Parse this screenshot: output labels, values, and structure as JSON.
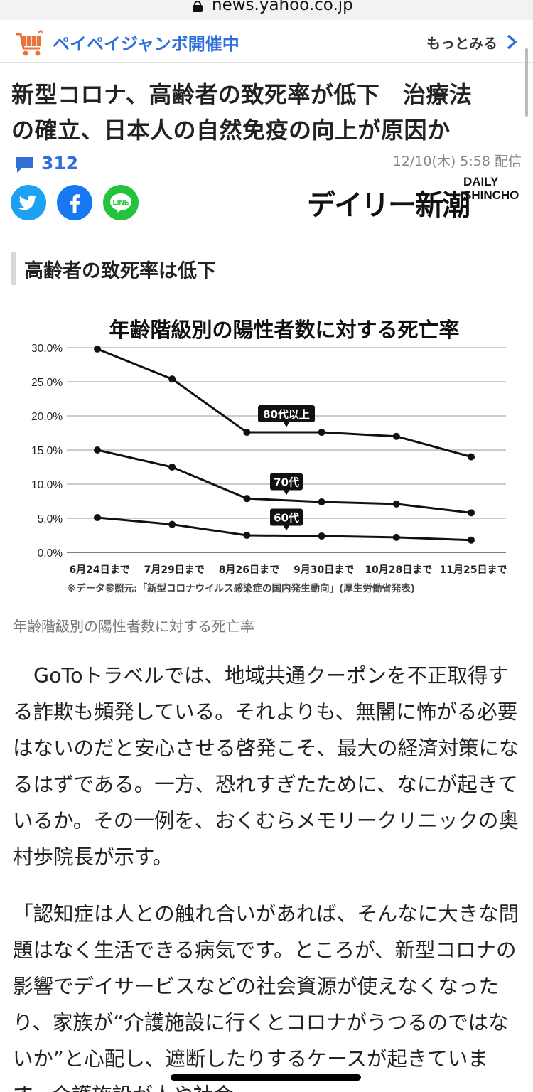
{
  "browser": {
    "url": "news.yahoo.co.jp"
  },
  "promo": {
    "label": "ペイペイジャンボ開催中",
    "more_label": "もっとみる"
  },
  "article": {
    "headline_line1": "新型コロナ、高齢者の致死率が低下　治療法",
    "headline_line2": "の確立、日本人の自然免疫の向上が原因か",
    "comment_count": "312",
    "date": "12/10(木) 5:58 配信",
    "brand_jp": "デイリー新潮",
    "brand_en_1": "DAILY",
    "brand_en_2": "SHINCHO",
    "section_heading": "高齢者の致死率は低下",
    "image_caption": "年齢階級別の陽性者数に対する死亡率",
    "paragraph1": "GoToトラベルでは、地域共通クーポンを不正取得する詐欺も頻発している。それよりも、無闇に怖がる必要はないのだと安心させる啓発こそ、最大の経済対策になるはずである。一方、恐れすぎたために、なにが起きているか。その一例を、おくむらメモリークリニックの奥村歩院長が示す。",
    "paragraph2": "「認知症は人との触れ合いがあれば、そんなに大きな問題はなく生活できる病気です。ところが、新型コロナの影響でデイサービスなどの社会資源が使えなくなったり、家族が“介護施設に行くとコロナがうつるのではないか”と心配し、遮断したりするケースが起きています。介護施設が人や社会"
  },
  "share": {
    "twitter": "twitter-icon",
    "facebook": "facebook-icon",
    "line_text": "LINE"
  },
  "chart_data": {
    "type": "line",
    "title": "年齢階級別の陽性者数に対する死亡率",
    "categories": [
      "6月24日まで",
      "7月29日まで",
      "8月26日まで",
      "9月30日まで",
      "10月28日まで",
      "11月25日まで"
    ],
    "y_ticks": [
      "0.0%",
      "5.0%",
      "10.0%",
      "15.0%",
      "20.0%",
      "25.0%",
      "30.0%"
    ],
    "ylim": [
      0,
      30
    ],
    "grid": true,
    "series": [
      {
        "name": "80代以上",
        "values": [
          29.8,
          25.4,
          17.6,
          17.6,
          17.0,
          14.0
        ]
      },
      {
        "name": "70代",
        "values": [
          15.0,
          12.5,
          7.9,
          7.4,
          7.1,
          5.8
        ]
      },
      {
        "name": "60代",
        "values": [
          5.1,
          4.1,
          2.5,
          2.4,
          2.2,
          1.8
        ]
      }
    ],
    "source_note": "※データ参照元:「新型コロナウイルス感染症の国内発生動向」(厚生労働省発表)"
  }
}
